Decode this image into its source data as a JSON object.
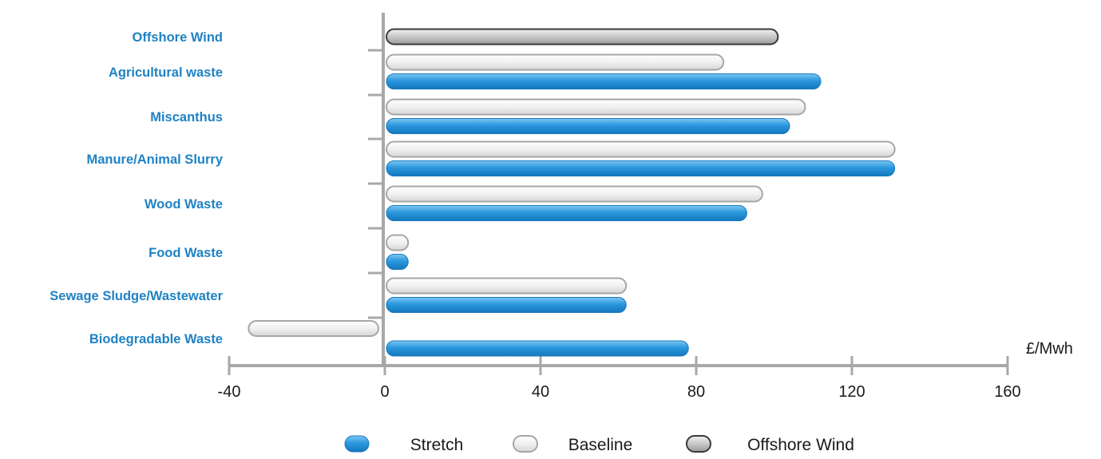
{
  "chart_data": {
    "type": "bar",
    "orientation": "horizontal",
    "categories": [
      "Offshore Wind",
      "Agricultural waste",
      "Miscanthus",
      "Manure/Animal Slurry",
      "Wood Waste",
      "Food Waste",
      "Sewage Sludge/Wastewater",
      "Biodegradable Waste"
    ],
    "series": [
      {
        "name": "Stretch",
        "values": [
          null,
          112,
          104,
          131,
          93,
          6,
          62,
          78
        ],
        "color": "#1f8fd6"
      },
      {
        "name": "Baseline",
        "values": [
          null,
          87,
          108,
          131,
          97,
          6,
          62,
          -35
        ],
        "color": "#e6e6e6"
      },
      {
        "name": "Offshore Wind",
        "values": [
          101,
          null,
          null,
          null,
          null,
          null,
          null,
          null
        ],
        "color": "#5a5a5a"
      }
    ],
    "xlim": [
      -40,
      160
    ],
    "x_ticks": [
      "-40",
      "0",
      "40",
      "80",
      "120",
      "160"
    ],
    "x_unit": "£/Mwh",
    "legend_position": "bottom-center",
    "grid": false
  }
}
